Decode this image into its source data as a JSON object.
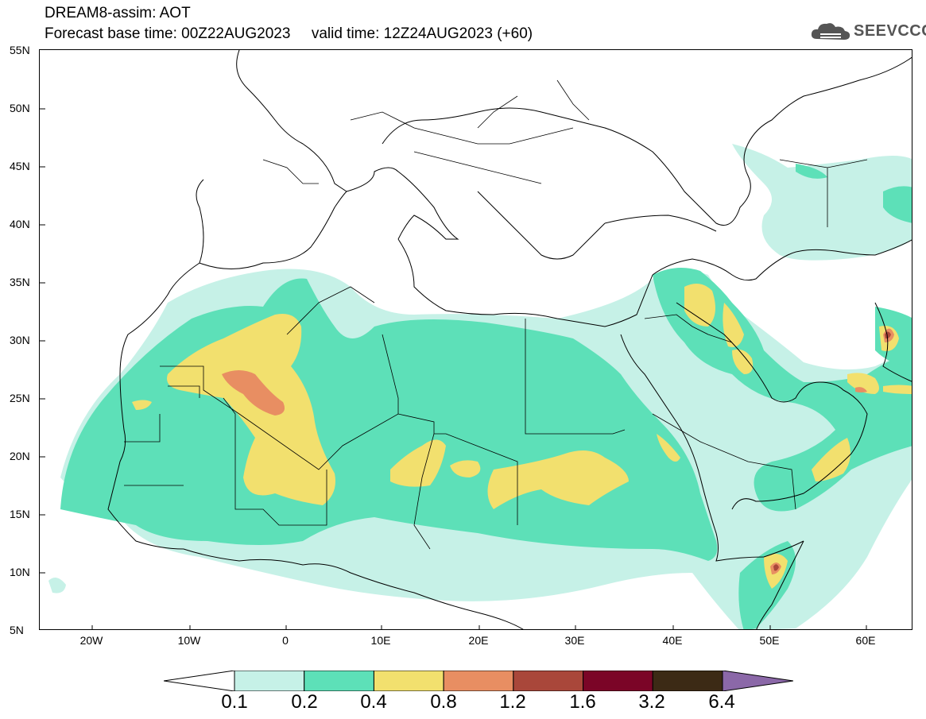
{
  "title": {
    "line1": "DREAM8-assim: AOT",
    "line2": "Forecast base time: 00Z22AUG2023     valid time: 12Z24AUG2023 (+60)"
  },
  "logo": {
    "text": "SEEVCCC",
    "icon": "cloud-icon"
  },
  "axes": {
    "lat_labels": [
      "55N",
      "50N",
      "45N",
      "40N",
      "35N",
      "30N",
      "25N",
      "20N",
      "15N",
      "10N",
      "5N"
    ],
    "lon_labels": [
      "20W",
      "10W",
      "0",
      "10E",
      "20E",
      "30E",
      "40E",
      "50E",
      "60E"
    ],
    "lat_range": [
      5,
      55
    ],
    "lon_range": [
      -25,
      65
    ]
  },
  "colorbar": {
    "labels": [
      "0.1",
      "0.2",
      "0.4",
      "0.8",
      "1.2",
      "1.6",
      "3.2",
      "6.4"
    ],
    "colors": [
      "#c6f1e7",
      "#5de0b8",
      "#f2e06e",
      "#e88e62",
      "#a9473a",
      "#7b0527",
      "#3c2a15",
      "#8b68a8"
    ],
    "under_color": "#ffffff"
  },
  "field": {
    "variable": "AOT",
    "colors": {
      "c1": "#c6f1e7",
      "c2": "#5de0b8",
      "c3": "#f2e06e",
      "c4": "#e88e62",
      "c5": "#a9473a"
    }
  }
}
